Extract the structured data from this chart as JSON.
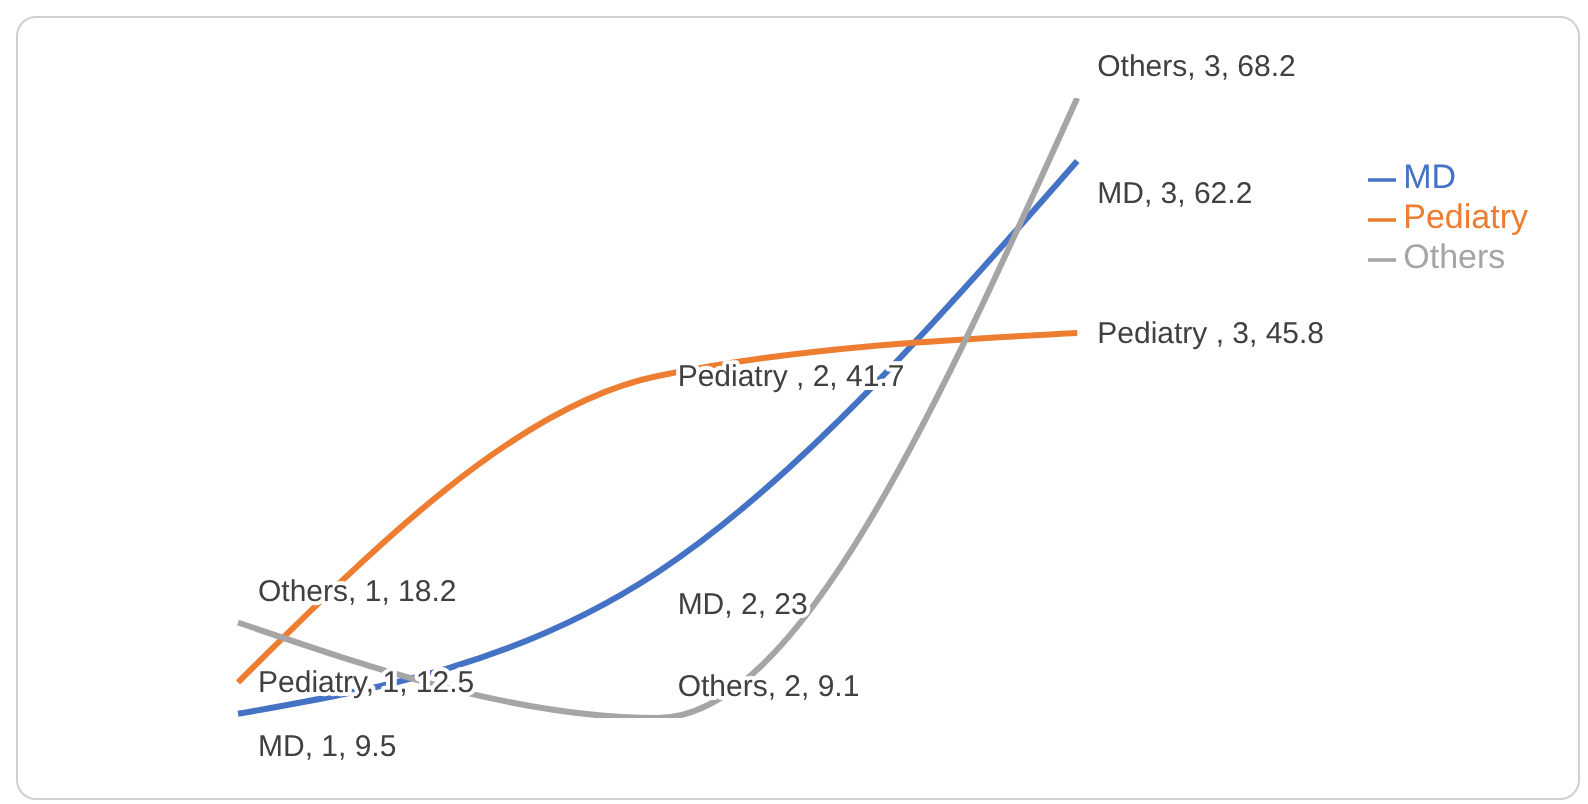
{
  "chart_data": {
    "type": "line",
    "categories": [
      null,
      null,
      null
    ],
    "tick_labels": false,
    "grid": false,
    "legend": "right",
    "line_style": "solid",
    "marker": "none",
    "series": [
      {
        "name": "MD",
        "color": "#4472c4",
        "values": [
          9.5,
          23,
          62.2
        ],
        "value_labels": [
          "MD, 1, 9.5",
          "MD, 2, 23",
          "MD, 3, 62.2"
        ]
      },
      {
        "name": "Pediatry",
        "color": "#ed7d31",
        "values": [
          12.5,
          41.7,
          45.8
        ],
        "value_labels": [
          "Pediatry, 1, 12.5",
          "Pediatry , 2, 41.7",
          "Pediatry , 3, 45.8"
        ]
      },
      {
        "name": "Others",
        "color": "#a5a5a5",
        "values": [
          18.2,
          9.1,
          68.2
        ],
        "value_labels": [
          "Others, 1, 18.2",
          "Others, 2, 9.1",
          "Others, 3, 68.2"
        ]
      }
    ]
  }
}
